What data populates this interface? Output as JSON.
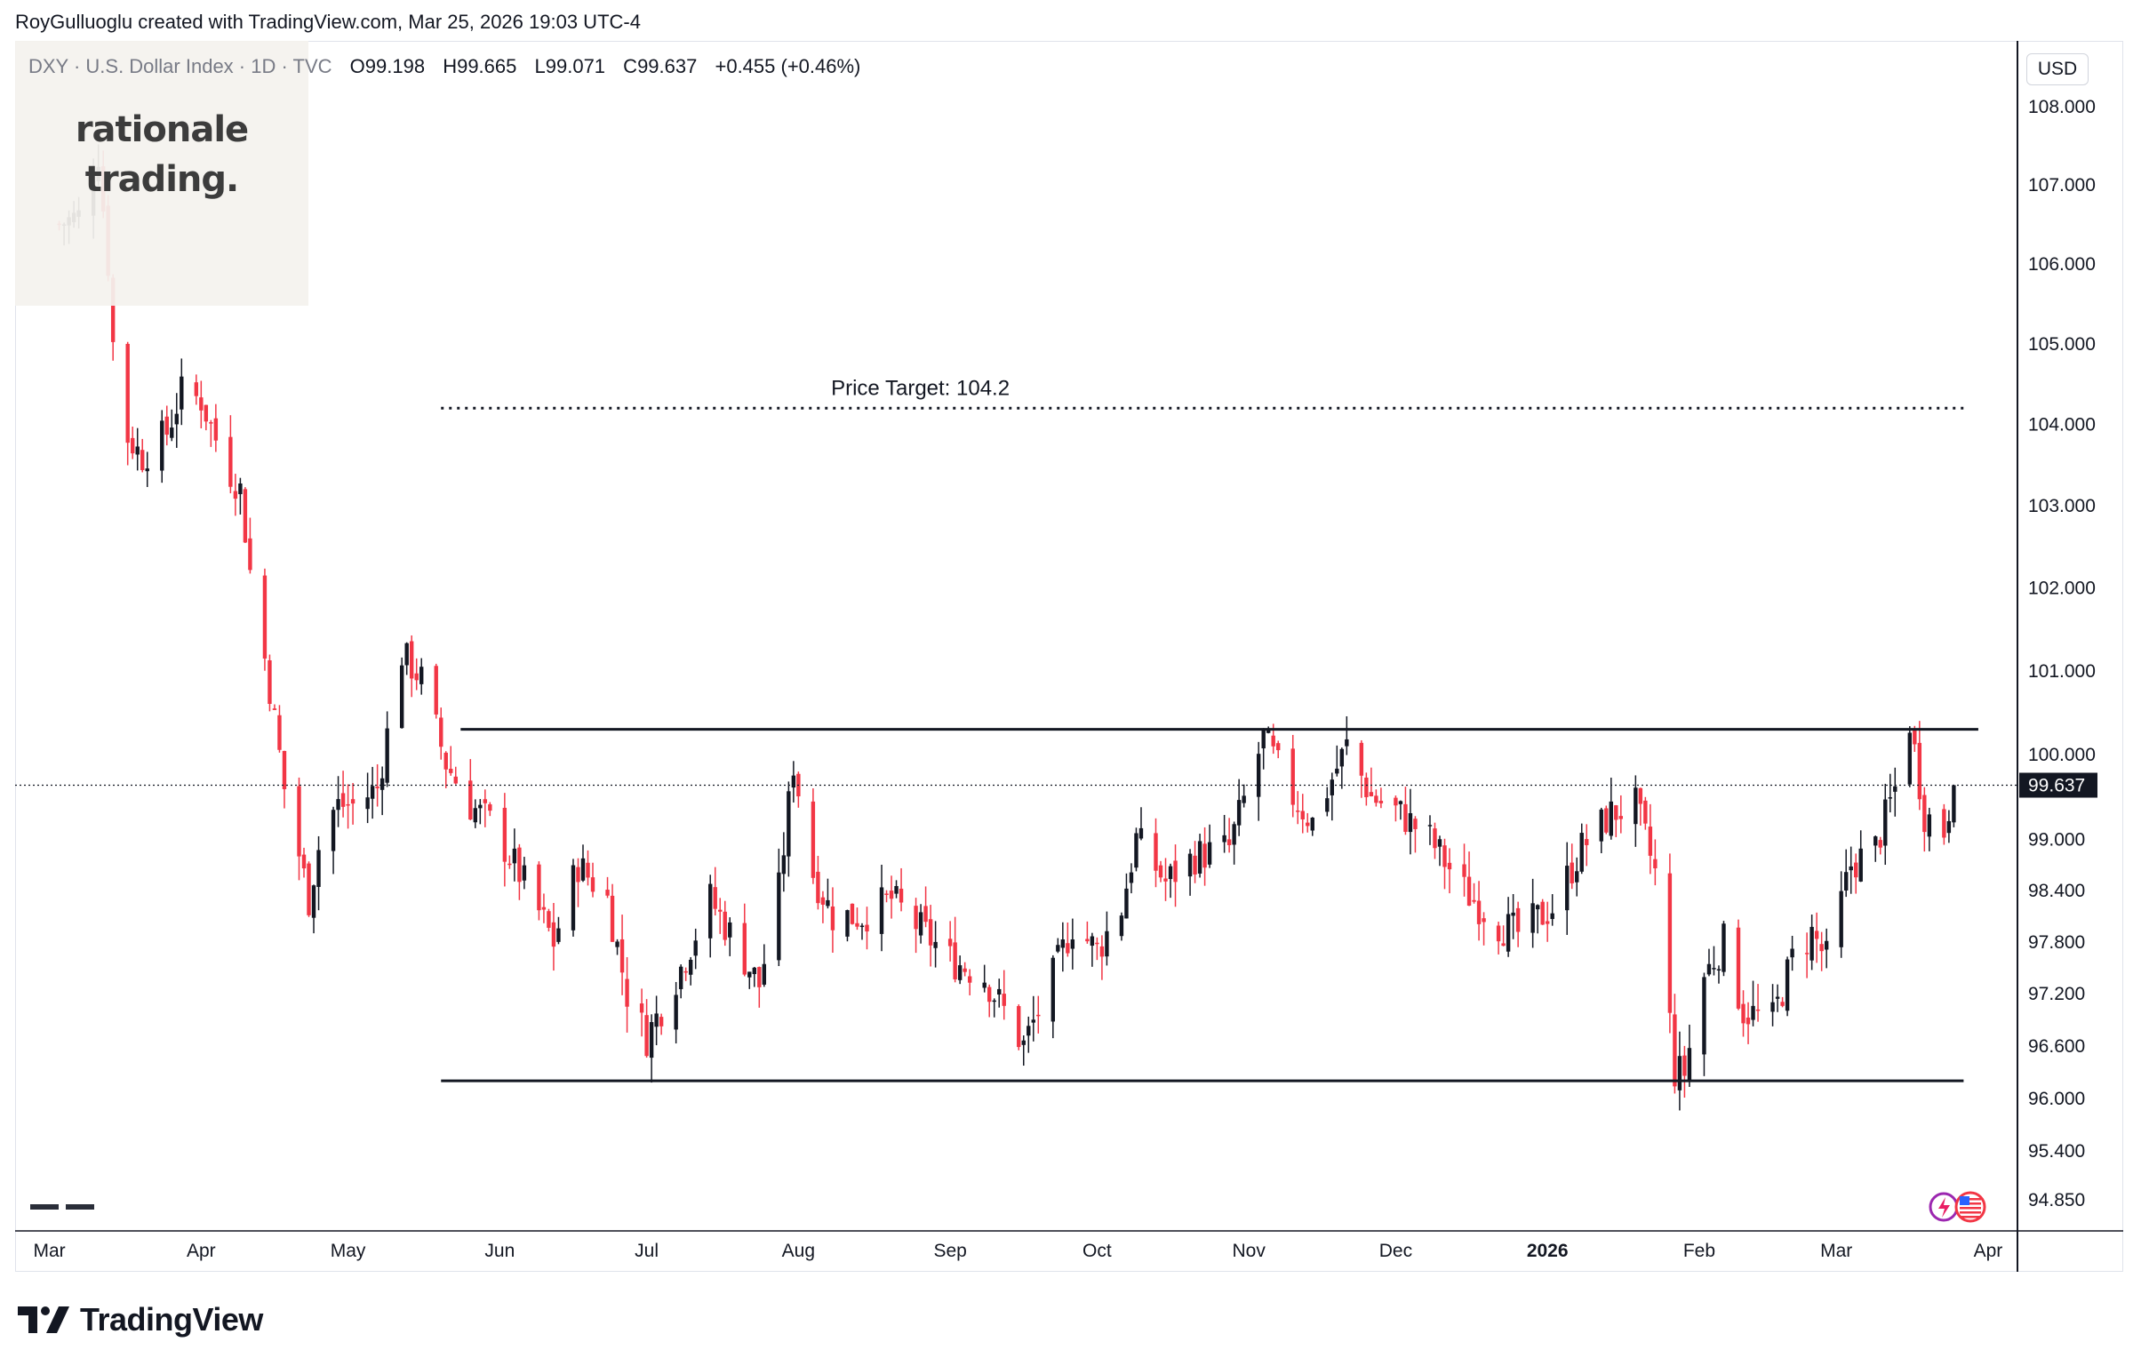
{
  "header": {
    "credit": "RoyGulluoglu created with TradingView.com, Mar 25, 2026 19:03 UTC-4",
    "symbol": "DXY · U.S. Dollar Index · 1D · TVC",
    "open_label": "O",
    "open": "99.198",
    "high_label": "H",
    "high": "99.665",
    "low_label": "L",
    "low": "99.071",
    "close_label": "C",
    "close": "99.637",
    "change": "+0.455 (+0.46%)"
  },
  "watermark": {
    "line1": "rationale",
    "line2": "trading."
  },
  "currency_button": "USD",
  "footer": {
    "brand": "TradingView"
  },
  "colors": {
    "up": "#131722",
    "down": "#f23645",
    "grid": "#e0e3eb"
  },
  "chart_data": {
    "type": "candlestick",
    "title": "DXY · U.S. Dollar Index · 1D · TVC",
    "ylim": [
      94.5,
      108.8
    ],
    "y_scale": "log",
    "y_ticks": [
      "108.000",
      "107.000",
      "106.000",
      "105.000",
      "104.000",
      "103.000",
      "102.000",
      "101.000",
      "100.000",
      "99.000",
      "98.400",
      "97.800",
      "97.200",
      "96.600",
      "96.000",
      "95.400",
      "94.850"
    ],
    "x_ticks": [
      "Mar",
      "Apr",
      "May",
      "Jun",
      "Jul",
      "Aug",
      "Sep",
      "Oct",
      "Nov",
      "Dec",
      "2026",
      "Feb",
      "Mar",
      "Apr"
    ],
    "last_price": "99.637",
    "annotations": {
      "price_target_label": "Price Target: 104.2",
      "price_target": 104.2,
      "resistance": 100.3,
      "support": 96.2
    },
    "price_path": [
      [
        "2025-03-03",
        106.5
      ],
      [
        "2025-03-07",
        106.6
      ],
      [
        "2025-03-11",
        107.4
      ],
      [
        "2025-03-13",
        106.0
      ],
      [
        "2025-03-15",
        104.0
      ],
      [
        "2025-03-20",
        103.6
      ],
      [
        "2025-03-25",
        103.9
      ],
      [
        "2025-03-28",
        104.4
      ],
      [
        "2025-04-01",
        104.3
      ],
      [
        "2025-04-06",
        103.5
      ],
      [
        "2025-04-09",
        103.2
      ],
      [
        "2025-04-11",
        102.2
      ],
      [
        "2025-04-15",
        100.8
      ],
      [
        "2025-04-18",
        99.6
      ],
      [
        "2025-04-23",
        98.3
      ],
      [
        "2025-04-26",
        99.2
      ],
      [
        "2025-04-29",
        99.4
      ],
      [
        "2025-05-02",
        99.4
      ],
      [
        "2025-05-07",
        99.6
      ],
      [
        "2025-05-12",
        101.2
      ],
      [
        "2025-05-16",
        100.9
      ],
      [
        "2025-05-21",
        99.9
      ],
      [
        "2025-05-26",
        99.4
      ],
      [
        "2025-05-30",
        99.2
      ],
      [
        "2025-06-05",
        98.6
      ],
      [
        "2025-06-12",
        97.8
      ],
      [
        "2025-06-17",
        98.7
      ],
      [
        "2025-06-23",
        98.3
      ],
      [
        "2025-06-27",
        97.2
      ],
      [
        "2025-07-01",
        96.7
      ],
      [
        "2025-07-08",
        97.5
      ],
      [
        "2025-07-14",
        98.3
      ],
      [
        "2025-07-18",
        97.9
      ],
      [
        "2025-07-24",
        97.3
      ],
      [
        "2025-07-28",
        98.4
      ],
      [
        "2025-07-31",
        99.9
      ],
      [
        "2025-08-04",
        98.6
      ],
      [
        "2025-08-08",
        98.1
      ],
      [
        "2025-08-14",
        98.1
      ],
      [
        "2025-08-20",
        98.3
      ],
      [
        "2025-08-25",
        98.0
      ],
      [
        "2025-09-01",
        97.6
      ],
      [
        "2025-09-08",
        97.4
      ],
      [
        "2025-09-16",
        96.6
      ],
      [
        "2025-09-22",
        97.4
      ],
      [
        "2025-09-26",
        98.0
      ],
      [
        "2025-10-01",
        97.7
      ],
      [
        "2025-10-06",
        98.2
      ],
      [
        "2025-10-09",
        99.0
      ],
      [
        "2025-10-15",
        98.5
      ],
      [
        "2025-10-21",
        98.8
      ],
      [
        "2025-10-28",
        98.9
      ],
      [
        "2025-11-04",
        100.2
      ],
      [
        "2025-11-10",
        99.5
      ],
      [
        "2025-11-14",
        99.2
      ],
      [
        "2025-11-21",
        100.1
      ],
      [
        "2025-11-26",
        99.5
      ],
      [
        "2025-12-02",
        99.3
      ],
      [
        "2025-12-08",
        99.0
      ],
      [
        "2025-12-15",
        98.4
      ],
      [
        "2025-12-22",
        98.0
      ],
      [
        "2025-12-26",
        97.9
      ],
      [
        "2026-01-02",
        98.2
      ],
      [
        "2026-01-08",
        98.9
      ],
      [
        "2026-01-14",
        99.3
      ],
      [
        "2026-01-19",
        99.4
      ],
      [
        "2026-01-23",
        98.6
      ],
      [
        "2026-01-27",
        96.3
      ],
      [
        "2026-01-29",
        96.3
      ],
      [
        "2026-02-02",
        97.4
      ],
      [
        "2026-02-06",
        97.8
      ],
      [
        "2026-02-10",
        97.0
      ],
      [
        "2026-02-16",
        96.9
      ],
      [
        "2026-02-20",
        97.6
      ],
      [
        "2026-02-24",
        97.9
      ],
      [
        "2026-02-27",
        97.6
      ],
      [
        "2026-03-04",
        98.7
      ],
      [
        "2026-03-09",
        98.9
      ],
      [
        "2026-03-13",
        99.6
      ],
      [
        "2026-03-16",
        100.4
      ],
      [
        "2026-03-19",
        99.3
      ],
      [
        "2026-03-23",
        99.1
      ],
      [
        "2026-03-25",
        99.637
      ]
    ]
  }
}
